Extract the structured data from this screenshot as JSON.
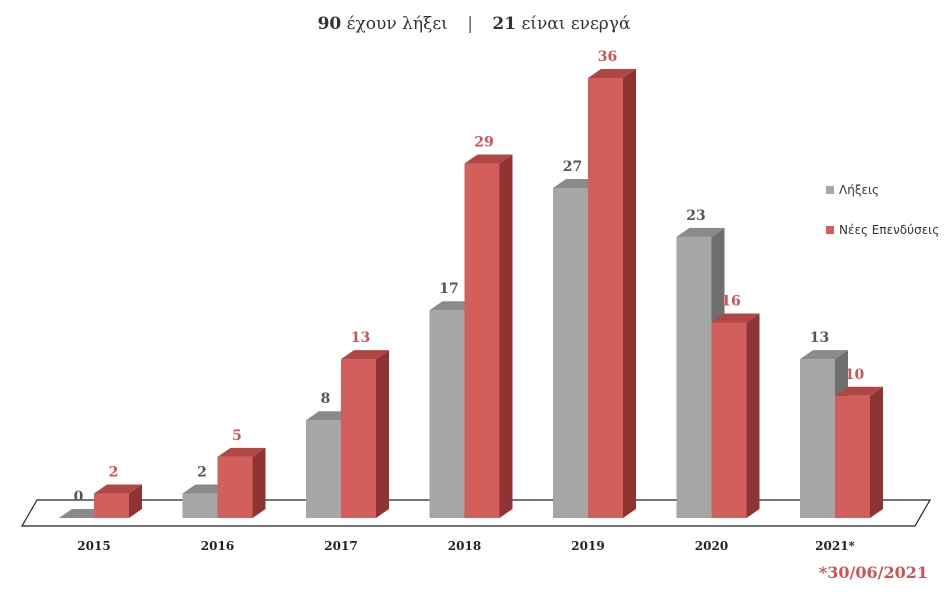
{
  "header": {
    "expired_count": "90",
    "expired_text": "έχουν λήξει",
    "separator": "|",
    "active_count": "21",
    "active_text": "είναι ενεργά"
  },
  "footnote": "*30/06/2021",
  "colors": {
    "grey_front": "#a6a6a6",
    "grey_side": "#6e6e6e",
    "grey_top": "#8a8a8a",
    "red_front": "#d35f5c",
    "red_side": "#8f3333",
    "red_top": "#b04747",
    "grey_label": "#555555",
    "red_label": "#d15252"
  },
  "chart_data": {
    "type": "bar",
    "categories": [
      "2015",
      "2016",
      "2017",
      "2018",
      "2019",
      "2020",
      "2021*"
    ],
    "series": [
      {
        "name": "Λήξεις",
        "values": [
          0,
          2,
          8,
          17,
          27,
          23,
          13
        ]
      },
      {
        "name": "Νέες Επενδύσεις",
        "values": [
          2,
          5,
          13,
          29,
          36,
          16,
          10
        ]
      }
    ],
    "ylim": [
      0,
      36
    ],
    "legend_position": "right",
    "grid": false
  }
}
